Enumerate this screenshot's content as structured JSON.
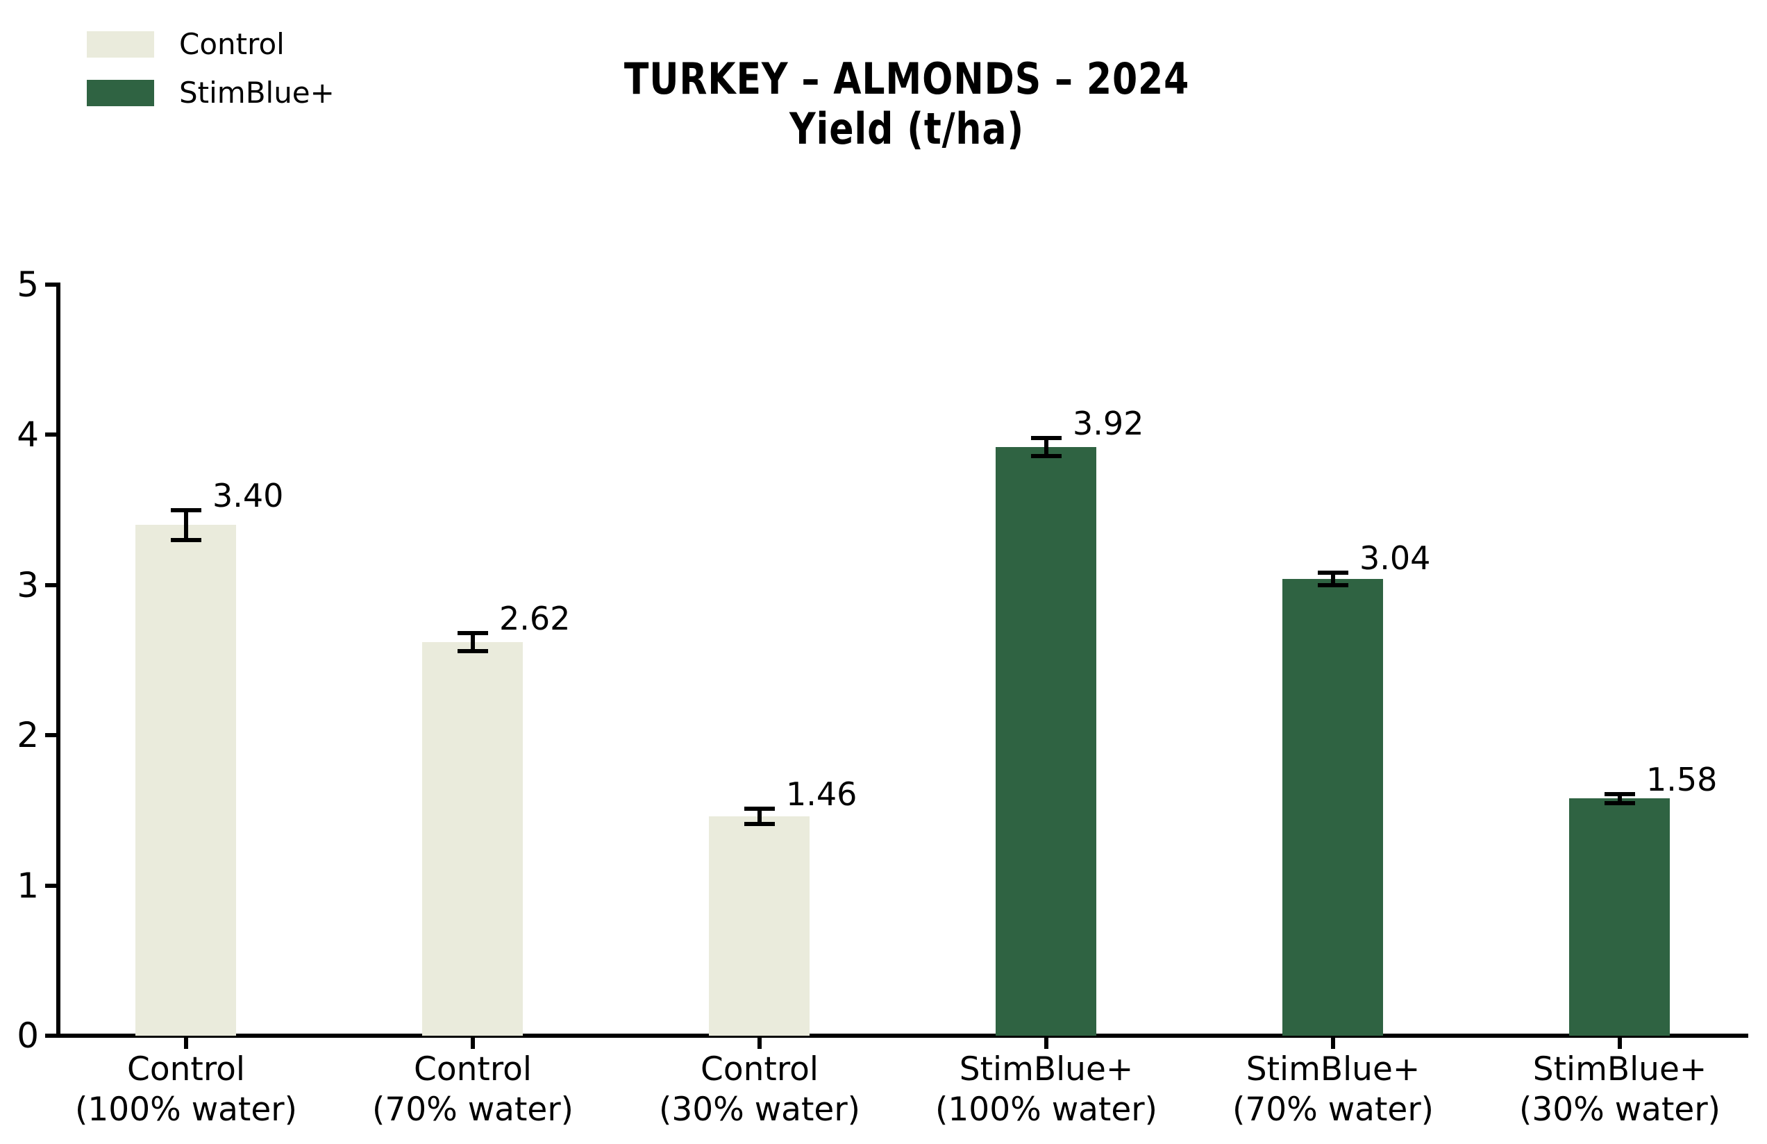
{
  "chart_data": {
    "type": "bar",
    "title": "TURKEY – ALMONDS – 2024",
    "subtitle": "Yield (t/ha)",
    "categories": [
      "Control (100% water)",
      "Control (70% water)",
      "Control (30% water)",
      "StimBlue+ (100% water)",
      "StimBlue+ (70% water)",
      "StimBlue+ (30% water)"
    ],
    "values": [
      3.4,
      2.62,
      1.46,
      3.92,
      3.04,
      1.58
    ],
    "value_labels": [
      "3.40",
      "2.62",
      "1.46",
      "3.92",
      "3.04",
      "1.58"
    ],
    "errors": [
      0.1,
      0.06,
      0.05,
      0.06,
      0.04,
      0.03
    ],
    "bar_colors": [
      "#EAEBDC",
      "#EAEBDC",
      "#EAEBDC",
      "#2F6342",
      "#2F6342",
      "#2F6342"
    ],
    "ylim": [
      0,
      5
    ],
    "yticks": [
      "0",
      "1",
      "2",
      "3",
      "4",
      "5"
    ],
    "xlabel": "",
    "ylabel": "",
    "grid": false,
    "legend": [
      {
        "label": "Control",
        "color": "#EAEBDC"
      },
      {
        "label": "StimBlue+",
        "color": "#2F6342"
      }
    ],
    "legend_position": "upper left",
    "axis_color": "#000000",
    "text_color": "#000000",
    "background_color": "#ffffff"
  }
}
